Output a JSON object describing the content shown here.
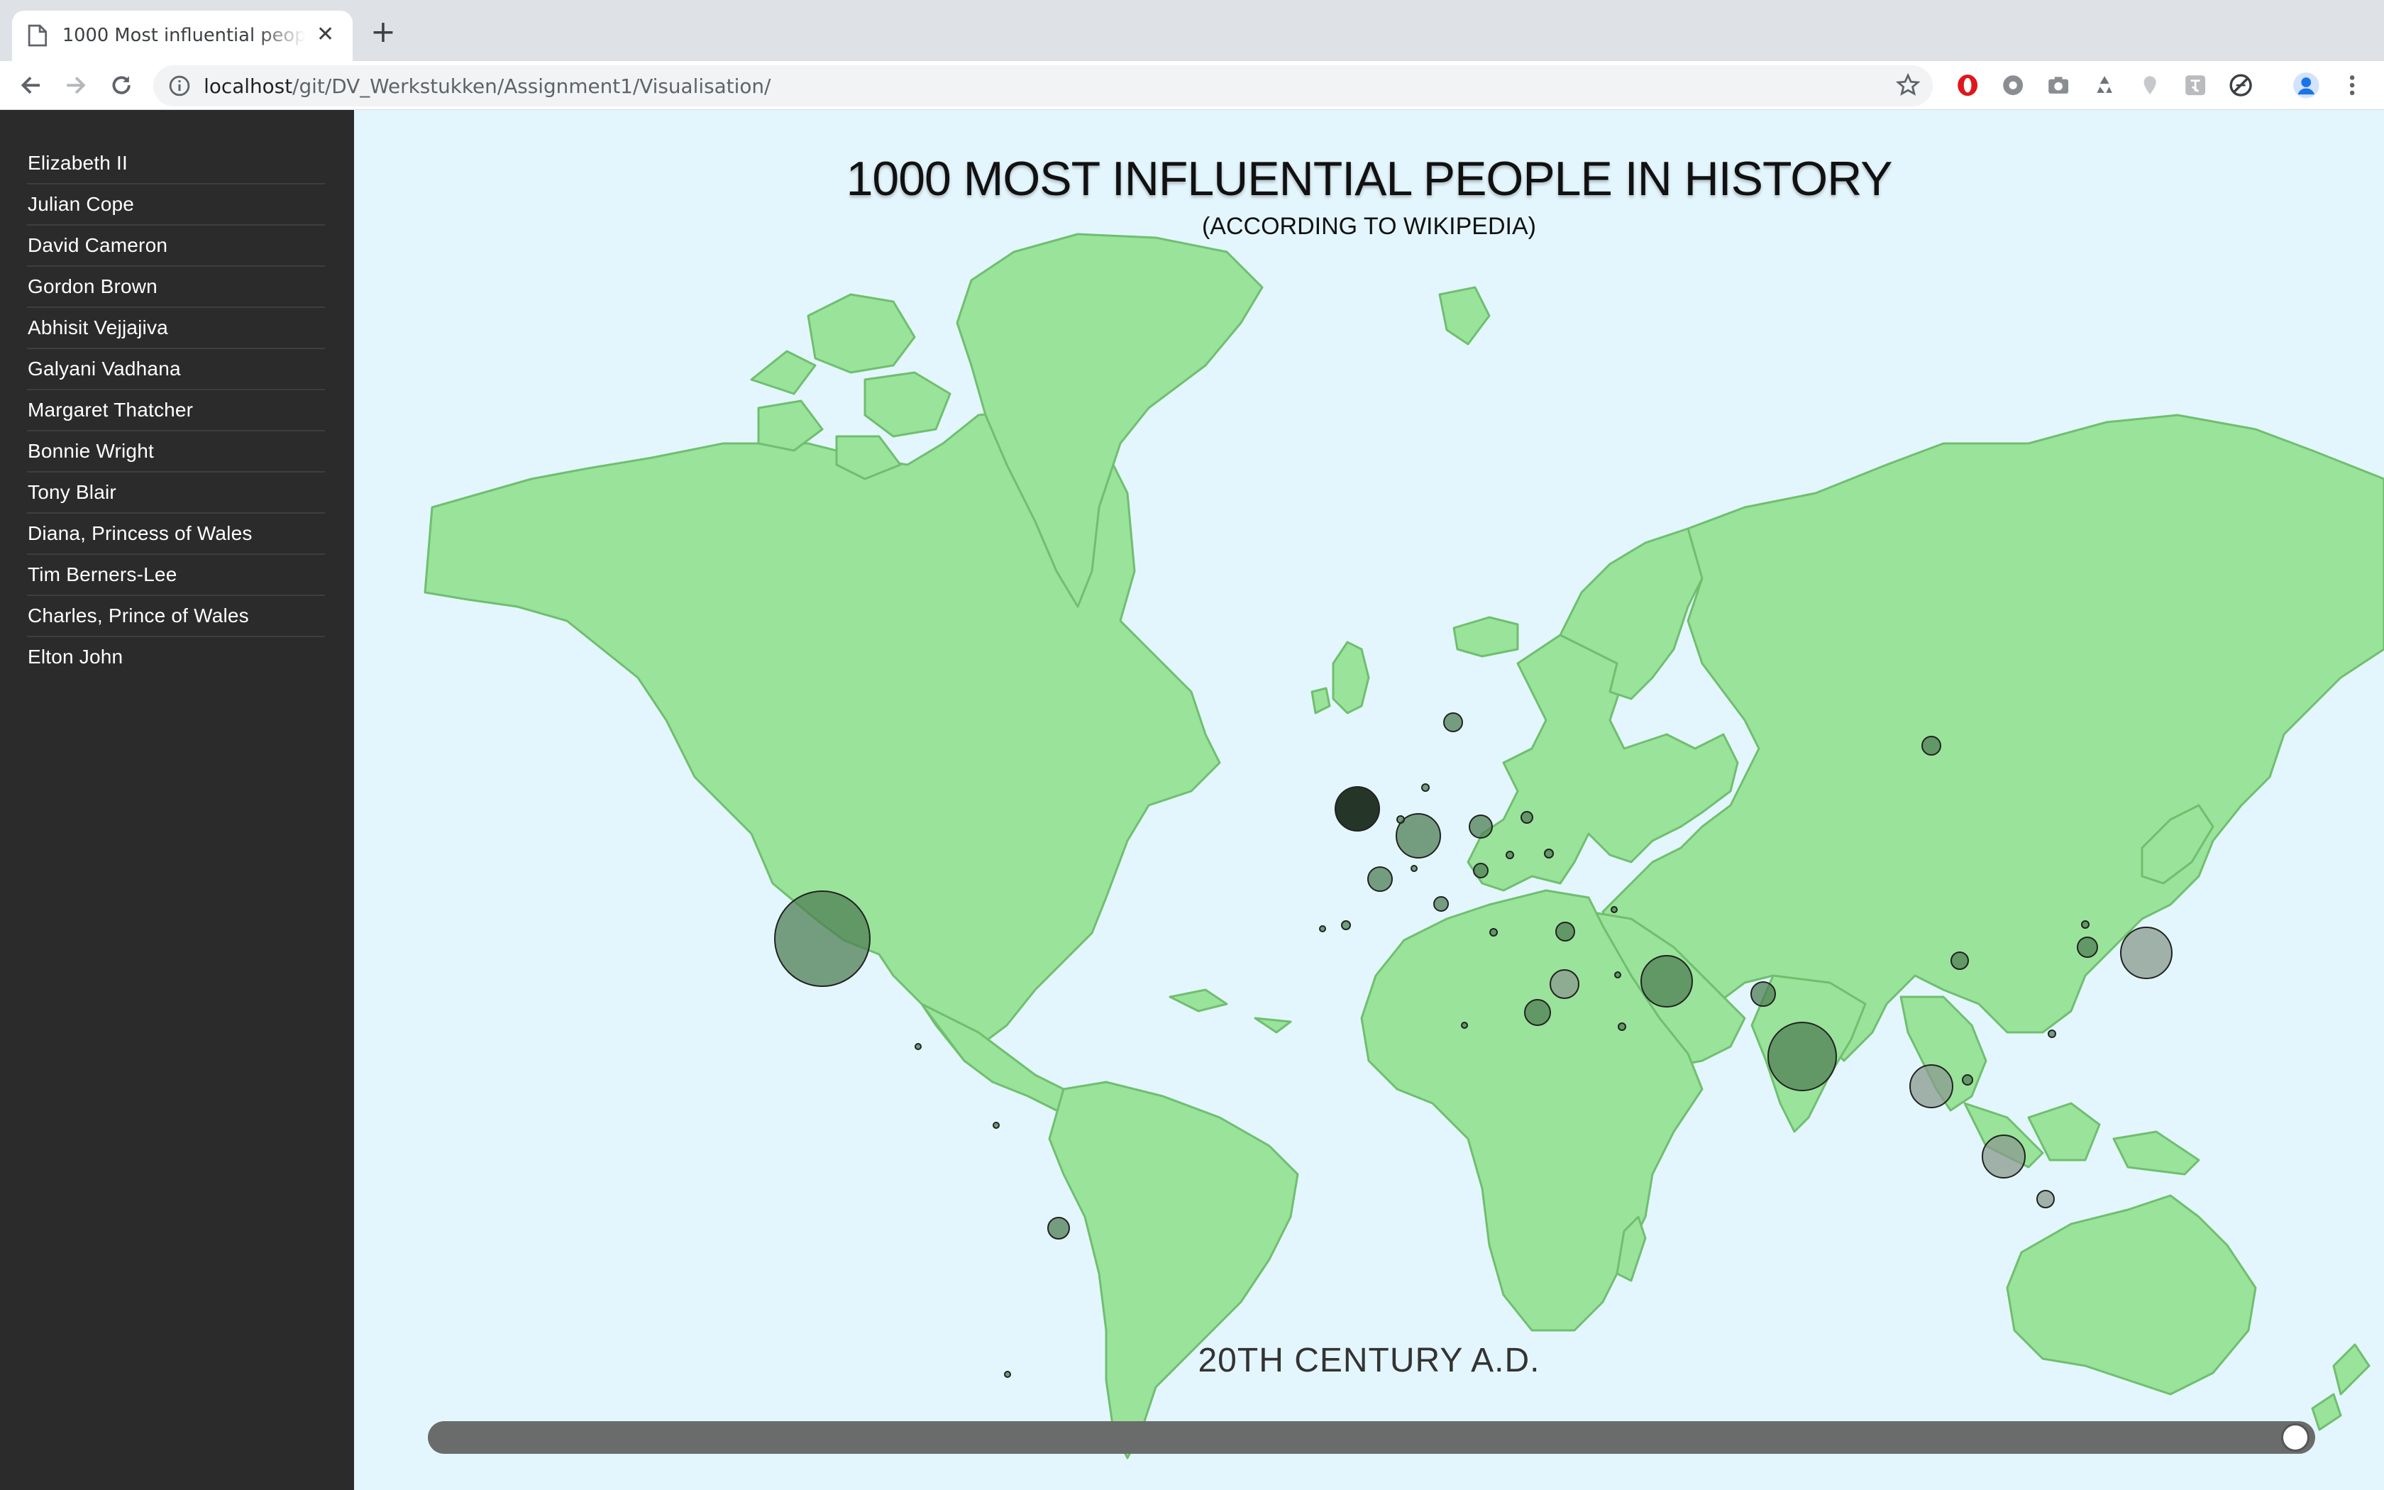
{
  "browser": {
    "tab_title": "1000 Most influential people in history",
    "new_tab_symbol": "+",
    "close_symbol": "✕",
    "url_host": "localhost",
    "url_path": "/git/DV_Werkstukken/Assignment1/Visualisation/"
  },
  "sidebar": {
    "people": [
      "Elizabeth II",
      "Julian Cope",
      "David Cameron",
      "Gordon Brown",
      "Abhisit Vejjajiva",
      "Galyani Vadhana",
      "Margaret Thatcher",
      "Bonnie Wright",
      "Tony Blair",
      "Diana, Princess of Wales",
      "Tim Berners-Lee",
      "Charles, Prince of Wales",
      "Elton John"
    ]
  },
  "main": {
    "title": "1000 MOST INFLUENTIAL PEOPLE IN HISTORY",
    "subtitle": "(ACCORDING TO WIKIPEDIA)",
    "period_label": "20TH CENTURY A.D.",
    "timeline_position": 1.0
  },
  "colors": {
    "ocean": "#e4f6fd",
    "land": "#9ae39a",
    "land_border": "#6fbf6f",
    "bubble": "#4f7f54",
    "selected_bubble": "#1a2a1c",
    "sidebar_bg": "#2b2b2b"
  }
}
